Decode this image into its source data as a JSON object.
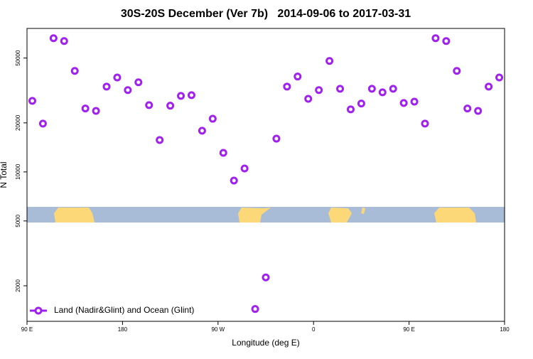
{
  "chart_data": {
    "type": "scatter",
    "title": "30S-20S December (Ver 7b)   2014-09-06 to 2017-03-31",
    "x_label": "Longitude (deg E)",
    "y_label": "N Total",
    "log_y": true,
    "legend": "bottom-left",
    "xlim": [
      90,
      540
    ],
    "xticks": [
      {
        "value": 90,
        "label": "90 E"
      },
      180,
      {
        "value": 270,
        "label": "90 W"
      },
      {
        "value": 360,
        "label": "0"
      },
      {
        "value": 450,
        "label": "90 E"
      },
      {
        "value": 540,
        "label": "180"
      }
    ],
    "ylim": [
      1210,
      76000
    ],
    "yticks": [
      2000,
      5000,
      10000,
      20000,
      50000
    ],
    "series": [
      {
        "name": "Land (Nadir&Glint) and Ocean (Glint)",
        "color": "#a020f0",
        "x": [
          95,
          105,
          115,
          125,
          135,
          145,
          155,
          165,
          175,
          185,
          195,
          205,
          215,
          225,
          235,
          245,
          255,
          265,
          275,
          285,
          295,
          305,
          315,
          325,
          335,
          345,
          355,
          365,
          375,
          385,
          395,
          405,
          415,
          425,
          435,
          445,
          455,
          465,
          475,
          485,
          495,
          505,
          515,
          525,
          535
        ],
        "values": [
          27300,
          19800,
          66200,
          63600,
          41700,
          24500,
          23700,
          33400,
          38000,
          31800,
          35500,
          25700,
          15700,
          25500,
          29300,
          29600,
          17900,
          21200,
          13100,
          8850,
          10500,
          1440,
          2250,
          16000,
          33400,
          38500,
          28100,
          31800,
          48000,
          32400,
          24200,
          26300,
          32400,
          30800,
          32400,
          26500,
          27000,
          19800,
          66200,
          63600,
          41700,
          24500,
          23700,
          33400,
          38000
        ]
      }
    ]
  }
}
